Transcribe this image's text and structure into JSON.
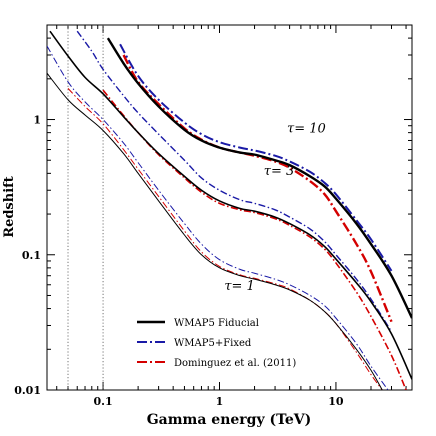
{
  "chart_data": {
    "type": "line",
    "title": "",
    "xlabel": "Gamma energy (TeV)",
    "ylabel": "Redshift",
    "xscale": "log",
    "yscale": "log",
    "xlim": [
      0.033,
      45
    ],
    "ylim": [
      0.01,
      5
    ],
    "grid": false,
    "legend_position": "bottom-left",
    "x_ticks": [
      {
        "value": 0.1,
        "label": "0.1"
      },
      {
        "value": 1,
        "label": "1"
      },
      {
        "value": 10,
        "label": "10"
      }
    ],
    "y_ticks": [
      {
        "value": 0.01,
        "label": "0.01"
      },
      {
        "value": 0.1,
        "label": "0.1"
      },
      {
        "value": 1,
        "label": "1"
      }
    ],
    "vlines": [
      0.05,
      0.1
    ],
    "annotations": [
      {
        "text": "τ= 10",
        "x": 3.8,
        "y": 0.8
      },
      {
        "text": "τ= 3",
        "x": 2.4,
        "y": 0.39
      },
      {
        "text": "τ= 1",
        "x": 1.1,
        "y": 0.055
      }
    ],
    "legend": [
      {
        "label": "WMAP5 Fiducial",
        "style": "solid",
        "color": "#000000"
      },
      {
        "label": "WMAP5+Fixed",
        "style": "dashdot",
        "color": "#1a1aa6"
      },
      {
        "label": "Dominguez et al. (2011)",
        "style": "dashdot",
        "color": "#d40000"
      }
    ],
    "series": [
      {
        "name": "WMAP5 Fiducial",
        "style": "solid",
        "color": "#000000",
        "width": 2.4,
        "group": "τ= 10",
        "x": [
          0.11,
          0.15,
          0.2,
          0.3,
          0.5,
          0.7,
          1.0,
          1.5,
          2,
          3,
          4,
          6,
          8,
          10,
          15,
          20,
          30,
          45
        ],
        "y": [
          4.0,
          2.6,
          1.85,
          1.25,
          0.84,
          0.7,
          0.62,
          0.57,
          0.55,
          0.5,
          0.46,
          0.38,
          0.32,
          0.26,
          0.17,
          0.12,
          0.07,
          0.034
        ]
      },
      {
        "name": "WMAP5+Fixed",
        "style": "dashdot",
        "color": "#1a1aa6",
        "width": 2.0,
        "group": "τ= 10",
        "x": [
          0.14,
          0.2,
          0.3,
          0.5,
          0.7,
          1.0,
          1.5,
          2,
          3,
          4,
          6,
          8,
          10,
          15,
          20,
          30
        ],
        "y": [
          3.6,
          2.1,
          1.4,
          0.95,
          0.78,
          0.68,
          0.62,
          0.59,
          0.54,
          0.49,
          0.41,
          0.34,
          0.28,
          0.18,
          0.13,
          0.076
        ]
      },
      {
        "name": "Dominguez et al. (2011)",
        "style": "dashdot",
        "color": "#d40000",
        "width": 2.4,
        "group": "τ= 10",
        "x": [
          0.15,
          0.2,
          0.3,
          0.5,
          0.7,
          1.0,
          1.5,
          2,
          3,
          4,
          6,
          8,
          10,
          15,
          20,
          30
        ],
        "y": [
          3.0,
          1.9,
          1.3,
          0.86,
          0.71,
          0.62,
          0.57,
          0.54,
          0.49,
          0.44,
          0.35,
          0.28,
          0.21,
          0.12,
          0.075,
          0.032
        ]
      },
      {
        "name": "WMAP5 Fiducial",
        "style": "solid",
        "color": "#000000",
        "width": 1.6,
        "group": "τ= 3",
        "x": [
          0.035,
          0.05,
          0.07,
          0.1,
          0.15,
          0.2,
          0.3,
          0.5,
          0.7,
          1.0,
          1.5,
          2,
          3,
          4,
          6,
          8,
          10,
          15,
          20,
          30,
          45
        ],
        "y": [
          4.5,
          2.95,
          2.05,
          1.55,
          1.05,
          0.8,
          0.56,
          0.38,
          0.3,
          0.25,
          0.22,
          0.21,
          0.19,
          0.17,
          0.14,
          0.115,
          0.093,
          0.062,
          0.045,
          0.026,
          0.012
        ]
      },
      {
        "name": "WMAP5+Fixed",
        "style": "dashdot",
        "color": "#1a1aa6",
        "width": 1.4,
        "group": "τ= 3",
        "x": [
          0.06,
          0.08,
          0.1,
          0.15,
          0.2,
          0.3,
          0.5,
          0.7,
          1.0,
          1.5,
          2,
          3,
          4,
          6,
          8,
          10,
          15,
          20,
          30
        ],
        "y": [
          4.5,
          3.2,
          2.35,
          1.5,
          1.12,
          0.78,
          0.5,
          0.37,
          0.3,
          0.255,
          0.24,
          0.215,
          0.19,
          0.155,
          0.125,
          0.1,
          0.066,
          0.047,
          0.027
        ]
      },
      {
        "name": "Dominguez et al. (2011)",
        "style": "dashdot",
        "color": "#d40000",
        "width": 1.6,
        "group": "τ= 3",
        "x": [
          0.1,
          0.15,
          0.2,
          0.3,
          0.5,
          0.7,
          1.0,
          1.5,
          2,
          3,
          4,
          6,
          8,
          10,
          15,
          20,
          30,
          40
        ],
        "y": [
          1.65,
          1.07,
          0.8,
          0.55,
          0.37,
          0.29,
          0.24,
          0.215,
          0.205,
          0.185,
          0.165,
          0.135,
          0.11,
          0.087,
          0.053,
          0.035,
          0.018,
          0.01
        ]
      },
      {
        "name": "WMAP5 Fiducial",
        "style": "solid",
        "color": "#000000",
        "width": 1.0,
        "group": "τ= 1",
        "x": [
          0.033,
          0.05,
          0.07,
          0.1,
          0.15,
          0.2,
          0.3,
          0.5,
          0.7,
          1.0,
          1.5,
          2,
          3,
          4,
          6,
          8,
          10,
          15,
          20,
          25
        ],
        "y": [
          2.2,
          1.4,
          1.08,
          0.83,
          0.56,
          0.4,
          0.25,
          0.14,
          0.1,
          0.08,
          0.07,
          0.066,
          0.06,
          0.055,
          0.046,
          0.038,
          0.031,
          0.02,
          0.014,
          0.01
        ]
      },
      {
        "name": "WMAP5+Fixed",
        "style": "dashdot",
        "color": "#1a1aa6",
        "width": 1.0,
        "group": "τ= 1",
        "x": [
          0.033,
          0.05,
          0.07,
          0.1,
          0.15,
          0.2,
          0.3,
          0.5,
          0.7,
          1.0,
          1.5,
          2,
          3,
          4,
          6,
          8,
          10,
          15,
          20,
          28
        ],
        "y": [
          3.5,
          1.9,
          1.35,
          1.0,
          0.67,
          0.48,
          0.3,
          0.17,
          0.12,
          0.092,
          0.078,
          0.073,
          0.066,
          0.06,
          0.05,
          0.042,
          0.034,
          0.022,
          0.015,
          0.01
        ]
      },
      {
        "name": "Dominguez et al. (2011)",
        "style": "dashdot",
        "color": "#d40000",
        "width": 1.0,
        "group": "τ= 1",
        "x": [
          0.05,
          0.07,
          0.1,
          0.15,
          0.2,
          0.3,
          0.5,
          0.7,
          1.0,
          1.5,
          2,
          3,
          4,
          6,
          8,
          10,
          15,
          20,
          25
        ],
        "y": [
          1.7,
          1.25,
          0.93,
          0.6,
          0.43,
          0.27,
          0.15,
          0.105,
          0.082,
          0.071,
          0.067,
          0.061,
          0.056,
          0.046,
          0.038,
          0.031,
          0.019,
          0.013,
          0.01
        ]
      }
    ]
  }
}
